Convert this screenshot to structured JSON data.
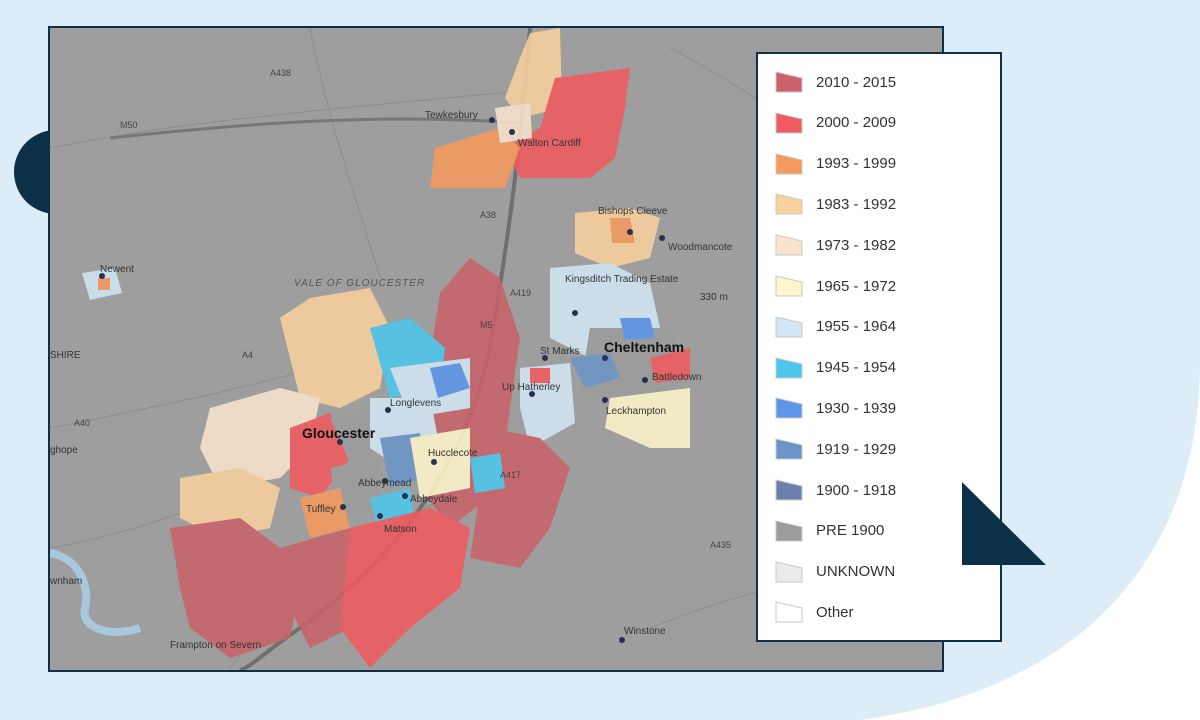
{
  "colors": {
    "panel_bg": "#dcedf8",
    "navy": "#0d3049",
    "map_base": "#9e9e9e"
  },
  "map": {
    "places": {
      "tewkesbury": "Tewkesbury",
      "walton_cardiff": "Walton Cardiff",
      "bishops_cleeve": "Bishops Cleeve",
      "woodmancote": "Woodmancote",
      "newent": "Newent",
      "vale": "VALE OF GLOUCESTER",
      "kingsditch": "Kingsditch Trading Estate",
      "st_marks": "St Marks",
      "cheltenham": "Cheltenham",
      "battledown": "Battledown",
      "up_hatherley": "Up Hatherley",
      "leckhampton": "Leckhampton",
      "longlevens": "Longlevens",
      "gloucester": "Gloucester",
      "hucclecote": "Hucclecote",
      "abbeymead": "Abbeymead",
      "abbeydale": "Abbeydale",
      "tuffley": "Tuffley",
      "matson": "Matson",
      "frampton": "Frampton on Severn",
      "winstone": "Winstone",
      "elevation": "330 m",
      "hope": "ghope",
      "newnham": "wnham",
      "shire": "SHIRE"
    },
    "roads": {
      "a438": "A438",
      "m50": "M50",
      "a38": "A38",
      "a40": "A40",
      "a417": "A417",
      "a435": "A435",
      "m5": "M5",
      "a419": "A419",
      "a4": "A4"
    }
  },
  "legend": {
    "items": [
      {
        "label": "2010 - 2015",
        "color": "#c9626a"
      },
      {
        "label": "2000 - 2009",
        "color": "#ef5b60"
      },
      {
        "label": "1993 - 1999",
        "color": "#f49a5e"
      },
      {
        "label": "1983 - 1992",
        "color": "#f8d19f"
      },
      {
        "label": "1973 - 1982",
        "color": "#f9e3cd"
      },
      {
        "label": "1965 - 1972",
        "color": "#fdf5cb"
      },
      {
        "label": "1955 - 1964",
        "color": "#d3e6f5"
      },
      {
        "label": "1945 - 1954",
        "color": "#4ec6ec"
      },
      {
        "label": "1930 - 1939",
        "color": "#5d96e8"
      },
      {
        "label": "1919 - 1929",
        "color": "#6b95c8"
      },
      {
        "label": "1900 - 1918",
        "color": "#6b7fae"
      },
      {
        "label": "PRE 1900",
        "color": "#9c9c9c"
      },
      {
        "label": "UNKNOWN",
        "color": "#ebebeb"
      },
      {
        "label": "Other",
        "color": "#ffffff"
      }
    ]
  }
}
